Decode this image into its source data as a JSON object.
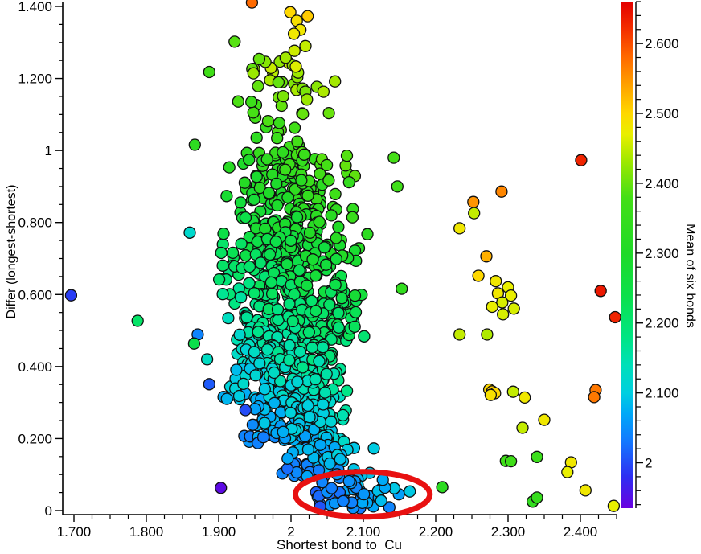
{
  "chart_data": {
    "type": "scatter",
    "title": "",
    "xlabel": "Shortest bond to  Cu",
    "ylabel": "Differ (longest-shortest)",
    "xlim": [
      1.684,
      2.451
    ],
    "ylim": [
      -0.011,
      1.413
    ],
    "x_axis": {
      "major_ticks": [
        [
          1.7,
          "1.700"
        ],
        [
          1.8,
          "1.800"
        ],
        [
          1.9,
          "1.900"
        ],
        [
          2.0,
          "2"
        ],
        [
          2.1,
          "2.100"
        ],
        [
          2.2,
          "2.200"
        ],
        [
          2.3,
          "2.300"
        ],
        [
          2.4,
          "2.400"
        ]
      ],
      "minor_step": 0.025
    },
    "y_axis": {
      "major_ticks": [
        [
          1.4,
          "1.400"
        ],
        [
          1.2,
          "1.200"
        ],
        [
          1.0,
          "1"
        ],
        [
          0.8,
          "0.800"
        ],
        [
          0.6,
          "0.600"
        ],
        [
          0.4,
          "0.400"
        ],
        [
          0.2,
          "0.200"
        ],
        [
          0.0,
          "0"
        ]
      ],
      "minor_step": 0.05
    },
    "colorbar": {
      "label": "Mean of six bonds",
      "vmin": 1.935,
      "vmax": 2.66,
      "major_ticks": [
        [
          2.6,
          "2.600"
        ],
        [
          2.5,
          "2.500"
        ],
        [
          2.4,
          "2.400"
        ],
        [
          2.3,
          "2.300"
        ],
        [
          2.2,
          "2.200"
        ],
        [
          2.1,
          "2.100"
        ],
        [
          2.0,
          "2"
        ]
      ],
      "minor_step": 0.02,
      "colormap_stops": [
        [
          1.935,
          "#6a00e0"
        ],
        [
          1.98,
          "#2e2ef2"
        ],
        [
          2.03,
          "#1478ff"
        ],
        [
          2.07,
          "#00a8f8"
        ],
        [
          2.1,
          "#00cfe0"
        ],
        [
          2.14,
          "#00e0b8"
        ],
        [
          2.18,
          "#00e583"
        ],
        [
          2.24,
          "#0ce04b"
        ],
        [
          2.3,
          "#1fda28"
        ],
        [
          2.38,
          "#44df16"
        ],
        [
          2.43,
          "#9ce800"
        ],
        [
          2.47,
          "#e9ef00"
        ],
        [
          2.5,
          "#ffd800"
        ],
        [
          2.54,
          "#ffa200"
        ],
        [
          2.58,
          "#ff6a00"
        ],
        [
          2.62,
          "#f43000"
        ],
        [
          2.66,
          "#e30000"
        ]
      ]
    },
    "marker": {
      "radius": 7,
      "stroke": "#101010",
      "stroke_width": 1.3
    },
    "highlight_points": [
      [
        1.696,
        0.598,
        1.99
      ],
      [
        1.788,
        0.527,
        2.21
      ],
      [
        1.86,
        0.772,
        2.12
      ],
      [
        1.871,
        0.489,
        2.04
      ],
      [
        1.866,
        0.464,
        2.24
      ],
      [
        1.884,
        0.42,
        2.13
      ],
      [
        1.887,
        0.351,
        2.01
      ],
      [
        1.937,
        0.279,
        2.0
      ],
      [
        1.903,
        0.063,
        1.945
      ],
      [
        1.946,
        1.411,
        2.58
      ],
      [
        1.999,
        1.384,
        2.5
      ],
      [
        2.023,
        1.373,
        2.51
      ],
      [
        2.008,
        1.36,
        2.49
      ],
      [
        2.013,
        1.335,
        2.48
      ],
      [
        2.004,
        1.324,
        2.48
      ],
      [
        1.922,
        1.302,
        2.39
      ],
      [
        2.02,
        1.29,
        2.45
      ],
      [
        1.956,
        1.254,
        2.4
      ],
      [
        1.887,
        1.218,
        2.37
      ],
      [
        1.867,
        1.016,
        2.33
      ],
      [
        2.142,
        0.98,
        2.38
      ],
      [
        2.147,
        0.9,
        2.37
      ],
      [
        2.153,
        0.616,
        2.34
      ],
      [
        2.401,
        0.973,
        2.63
      ],
      [
        2.291,
        0.886,
        2.56
      ],
      [
        2.252,
        0.857,
        2.55
      ],
      [
        2.253,
        0.826,
        2.45
      ],
      [
        2.233,
        0.784,
        2.48
      ],
      [
        2.27,
        0.706,
        2.53
      ],
      [
        2.259,
        0.652,
        2.5
      ],
      [
        2.283,
        0.637,
        2.48
      ],
      [
        2.3,
        0.62,
        2.47
      ],
      [
        2.286,
        0.603,
        2.48
      ],
      [
        2.304,
        0.597,
        2.47
      ],
      [
        2.292,
        0.578,
        2.46
      ],
      [
        2.278,
        0.566,
        2.47
      ],
      [
        2.308,
        0.561,
        2.46
      ],
      [
        2.293,
        0.545,
        2.46
      ],
      [
        2.428,
        0.61,
        2.64
      ],
      [
        2.448,
        0.537,
        2.63
      ],
      [
        2.233,
        0.489,
        2.45
      ],
      [
        2.271,
        0.489,
        2.44
      ],
      [
        2.274,
        0.336,
        2.5
      ],
      [
        2.278,
        0.331,
        2.51
      ],
      [
        2.282,
        0.326,
        2.5
      ],
      [
        2.276,
        0.321,
        2.49
      ],
      [
        2.307,
        0.33,
        2.45
      ],
      [
        2.323,
        0.314,
        2.48
      ],
      [
        2.421,
        0.335,
        2.57
      ],
      [
        2.419,
        0.315,
        2.57
      ],
      [
        2.35,
        0.252,
        2.48
      ],
      [
        2.32,
        0.23,
        2.45
      ],
      [
        2.34,
        0.149,
        2.36
      ],
      [
        2.297,
        0.138,
        2.37
      ],
      [
        2.304,
        0.137,
        2.37
      ],
      [
        2.387,
        0.134,
        2.48
      ],
      [
        2.382,
        0.107,
        2.47
      ],
      [
        2.209,
        0.065,
        2.33
      ],
      [
        2.407,
        0.056,
        2.48
      ],
      [
        2.334,
        0.025,
        2.34
      ],
      [
        2.34,
        0.036,
        2.35
      ],
      [
        2.446,
        0.013,
        2.47
      ]
    ],
    "cluster_bands": [
      {
        "x": [
          1.92,
          2.075
        ],
        "y": [
          1.0,
          1.28
        ],
        "count": 48
      },
      {
        "x": [
          1.905,
          2.1
        ],
        "y": [
          0.82,
          1.0
        ],
        "count": 130
      },
      {
        "x": [
          1.895,
          2.11
        ],
        "y": [
          0.64,
          0.82
        ],
        "count": 185
      },
      {
        "x": [
          1.895,
          2.12
        ],
        "y": [
          0.46,
          0.64
        ],
        "count": 205
      },
      {
        "x": [
          1.898,
          2.105
        ],
        "y": [
          0.3,
          0.46
        ],
        "count": 175
      },
      {
        "x": [
          1.925,
          2.09
        ],
        "y": [
          0.185,
          0.3
        ],
        "count": 110
      },
      {
        "x": [
          1.965,
          2.12
        ],
        "y": [
          0.09,
          0.185
        ],
        "count": 60
      },
      {
        "x": [
          2.005,
          2.175
        ],
        "y": [
          0.005,
          0.09
        ],
        "count": 48
      }
    ],
    "color_model": {
      "base": 2.0,
      "y_coeff": 0.36,
      "x_coeff": 0.45,
      "x_ref": 2.0,
      "jitter": 0.05,
      "seed": 1337
    },
    "annotation": {
      "type": "ellipse",
      "cx": 2.099,
      "cy": 0.045,
      "rx": 0.093,
      "ry": 0.0625,
      "color": "#e81111",
      "stroke_width": 7
    }
  }
}
